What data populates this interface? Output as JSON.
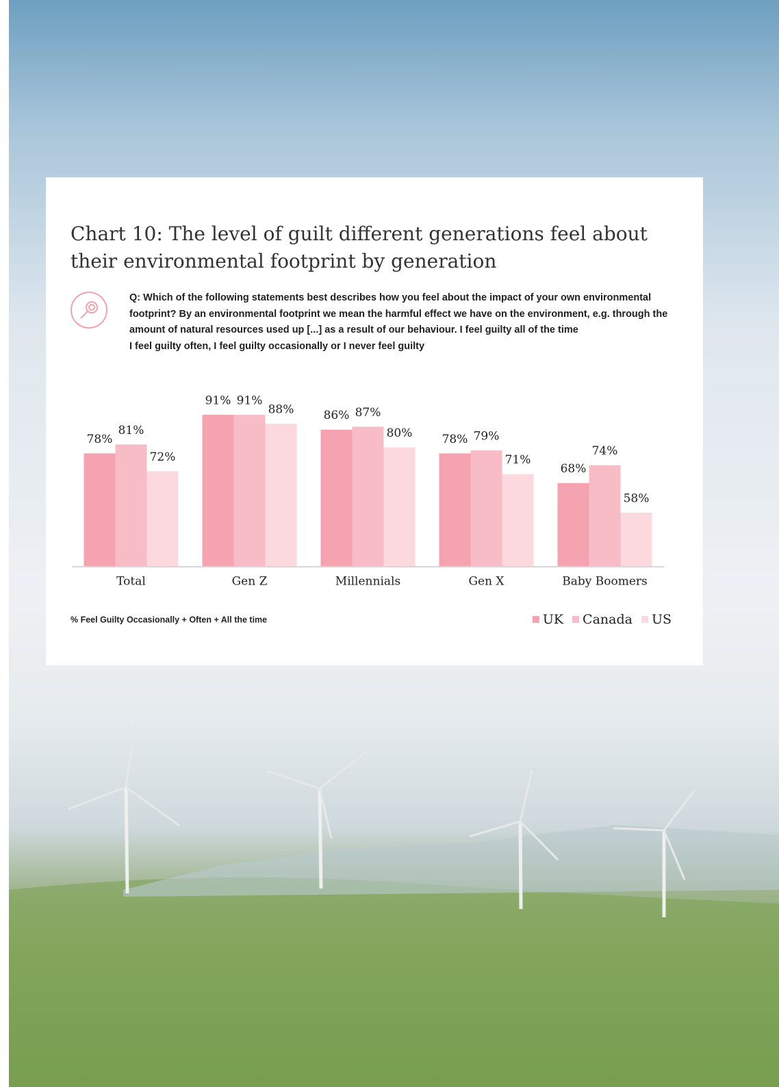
{
  "chart_data": {
    "type": "bar",
    "title": "Chart 10: The level of guilt different generations feel about their environmental footprint by generation",
    "question": [
      "Q: Which of the following statements best describes how you feel about the impact of your own environmental footprint? By an environmental footprint we mean the harmful effect we have on the environment, e.g. through the amount of natural resources used up [...] as a result of our behaviour.  I feel guilty all of the time",
      "I feel guilty often, I feel guilty occasionally or I never feel guilty"
    ],
    "categories": [
      "Total",
      "Gen Z",
      "Millennials",
      "Gen X",
      "Baby Boomers"
    ],
    "series": [
      {
        "name": "UK",
        "color": "#f5a3b0",
        "values": [
          78,
          91,
          86,
          78,
          68
        ],
        "value_labels": [
          "78%",
          "91%",
          "86%",
          "78%",
          "68%"
        ]
      },
      {
        "name": "Canada",
        "color": "#f8bcc6",
        "values": [
          81,
          91,
          87,
          79,
          74
        ],
        "value_labels": [
          "81%",
          "91%",
          "87%",
          "79%",
          "74%"
        ]
      },
      {
        "name": "US",
        "color": "#fbd9de",
        "values": [
          72,
          88,
          80,
          71,
          58
        ],
        "value_labels": [
          "72%",
          "88%",
          "80%",
          "71%",
          "58%"
        ]
      }
    ],
    "ylim": [
      40,
      100
    ],
    "footnote": "% Feel Guilty Occasionally + Often + All the time",
    "legend": "bottom-right"
  }
}
